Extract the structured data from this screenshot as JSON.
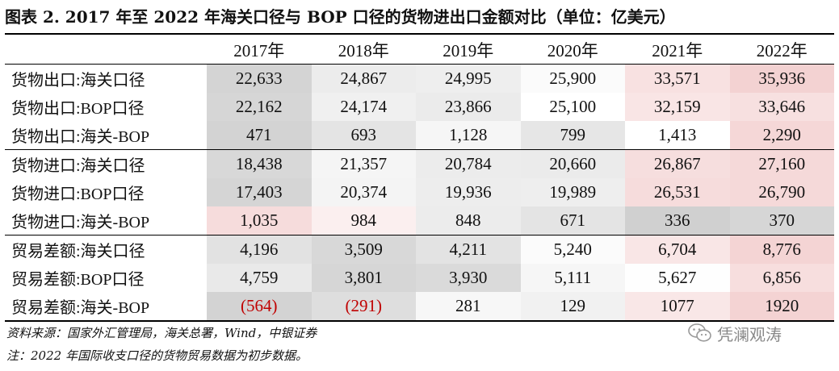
{
  "title": "图表 2. 2017 年至 2022 年海关口径与 BOP 口径的货物进出口金额对比（单位：亿美元）",
  "columns": [
    "2017年",
    "2018年",
    "2019年",
    "2020年",
    "2021年",
    "2022年"
  ],
  "groups": [
    {
      "rows": [
        {
          "label": "货物出口:海关口径",
          "values": [
            "22,633",
            "24,867",
            "24,995",
            "25,900",
            "33,571",
            "35,936"
          ],
          "colors": [
            "#d4d4d4",
            "#ececec",
            "#eeeeee",
            "#fbfbfb",
            "#f8e1e1",
            "#f3d2d2"
          ]
        },
        {
          "label": "货物出口:BOP口径",
          "values": [
            "22,162",
            "24,174",
            "23,866",
            "25,100",
            "32,159",
            "33,646"
          ],
          "colors": [
            "#d6d6d6",
            "#f0f0f0",
            "#ebebeb",
            "#ffffff",
            "#f9e5e5",
            "#f7e0e0"
          ]
        },
        {
          "label": "货物出口:海关-BOP",
          "values": [
            "471",
            "693",
            "1,128",
            "799",
            "1,413",
            "2,290"
          ],
          "colors": [
            "#d3d3d3",
            "#e4e4e4",
            "#f6f6f6",
            "#e6e6e6",
            "#ffffff",
            "#f5d7d7"
          ]
        }
      ]
    },
    {
      "rows": [
        {
          "label": "货物进口:海关口径",
          "values": [
            "18,438",
            "21,357",
            "20,784",
            "20,660",
            "26,867",
            "27,160"
          ],
          "colors": [
            "#d8d8d8",
            "#f5f5f5",
            "#ececec",
            "#ebebeb",
            "#f6dede",
            "#f5d9d9"
          ]
        },
        {
          "label": "货物进口:BOP口径",
          "values": [
            "17,403",
            "20,374",
            "19,936",
            "19,989",
            "26,531",
            "26,790"
          ],
          "colors": [
            "#d5d5d5",
            "#f4f4f4",
            "#ededed",
            "#eeeeee",
            "#f6dcdc",
            "#f5d9d9"
          ]
        },
        {
          "label": "货物进口:海关-BOP",
          "values": [
            "1,035",
            "984",
            "848",
            "671",
            "336",
            "370"
          ],
          "colors": [
            "#f6dcdc",
            "#fbefef",
            "#ececec",
            "#e4e4e4",
            "#d0d0d0",
            "#d6d6d6"
          ]
        }
      ]
    },
    {
      "rows": [
        {
          "label": "贸易差额:海关口径",
          "values": [
            "4,196",
            "3,509",
            "4,211",
            "5,240",
            "6,704",
            "8,776"
          ],
          "colors": [
            "#e2e2e2",
            "#d8d8d8",
            "#e3e3e3",
            "#fbfbfb",
            "#f9e6e6",
            "#f4d4d4"
          ]
        },
        {
          "label": "贸易差额:BOP口径",
          "values": [
            "4,759",
            "3,801",
            "3,930",
            "5,111",
            "5,627",
            "6,856"
          ],
          "colors": [
            "#e9e9e9",
            "#d6d6d6",
            "#dadada",
            "#f6f6f6",
            "#fefefe",
            "#f7dede"
          ]
        },
        {
          "label": "贸易差额:海关-BOP",
          "values": [
            "(564)",
            "(291)",
            "281",
            "129",
            "1077",
            "1920"
          ],
          "negative": [
            true,
            true,
            false,
            false,
            false,
            false
          ],
          "colors": [
            "#d3d3d3",
            "#dedede",
            "#f7f7f7",
            "#f1f1f1",
            "#f9e7e7",
            "#f4d3d3"
          ]
        }
      ]
    }
  ],
  "notes": {
    "source": "资料来源：国家外汇管理局，海关总署，Wind，中银证券",
    "note": "注：2022 年国际收支口径的货物贸易数据为初步数据。"
  },
  "watermark": {
    "text": "凭澜观涛",
    "icon": "wechat-icon"
  }
}
